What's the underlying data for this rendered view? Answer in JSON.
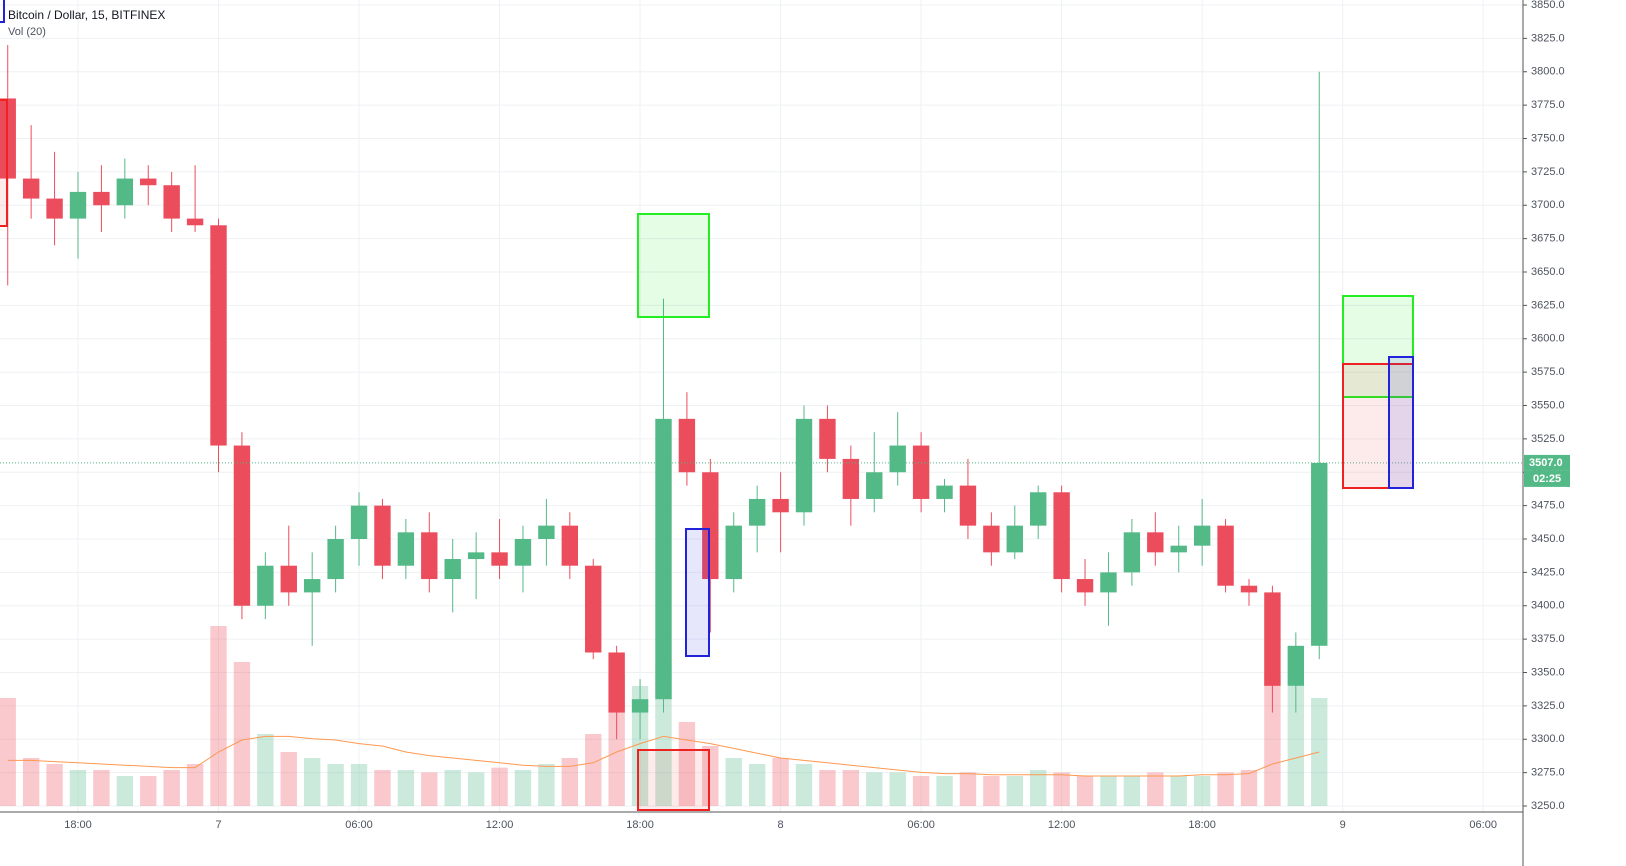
{
  "chart_data": {
    "type": "candlestick",
    "title": "Bitcoin / Dollar, 15, BITFINEX",
    "subtitle": "Vol (20)",
    "x": [
      -3,
      -2,
      -1,
      0,
      1,
      2,
      3,
      4,
      5,
      6,
      7,
      8,
      9,
      10,
      11,
      12,
      13,
      14,
      15,
      16,
      17,
      18,
      19,
      20,
      21,
      22,
      23,
      24,
      25,
      26,
      27,
      28,
      29,
      30,
      31,
      32,
      33,
      34,
      35,
      36,
      37,
      38,
      39,
      40,
      41,
      42,
      43,
      44,
      45,
      46,
      47,
      48,
      49,
      50,
      51,
      52,
      53
    ],
    "open": [
      3780,
      3720,
      3705,
      3690,
      3710,
      3700,
      3720,
      3715,
      3690,
      3685,
      3520,
      3400,
      3430,
      3410,
      3420,
      3450,
      3475,
      3430,
      3455,
      3420,
      3435,
      3440,
      3430,
      3450,
      3460,
      3430,
      3365,
      3320,
      3330,
      3540,
      3500,
      3420,
      3460,
      3480,
      3470,
      3540,
      3510,
      3480,
      3500,
      3520,
      3480,
      3490,
      3460,
      3440,
      3460,
      3485,
      3420,
      3410,
      3425,
      3455,
      3440,
      3445,
      3460,
      3415,
      3410,
      3340,
      3370
    ],
    "high": [
      3820,
      3760,
      3740,
      3725,
      3730,
      3735,
      3730,
      3725,
      3730,
      3690,
      3530,
      3440,
      3460,
      3440,
      3460,
      3485,
      3480,
      3465,
      3470,
      3450,
      3455,
      3465,
      3460,
      3480,
      3470,
      3435,
      3370,
      3345,
      3630,
      3560,
      3510,
      3470,
      3490,
      3500,
      3550,
      3550,
      3520,
      3530,
      3545,
      3530,
      3495,
      3510,
      3470,
      3475,
      3490,
      3490,
      3435,
      3440,
      3465,
      3470,
      3460,
      3480,
      3465,
      3420,
      3415,
      3380,
      3800
    ],
    "low": [
      3640,
      3690,
      3670,
      3660,
      3680,
      3690,
      3700,
      3680,
      3680,
      3500,
      3390,
      3390,
      3400,
      3370,
      3410,
      3430,
      3420,
      3420,
      3410,
      3395,
      3405,
      3420,
      3410,
      3430,
      3420,
      3360,
      3300,
      3300,
      3320,
      3490,
      3380,
      3410,
      3440,
      3440,
      3460,
      3500,
      3460,
      3470,
      3490,
      3470,
      3470,
      3450,
      3430,
      3435,
      3450,
      3410,
      3400,
      3385,
      3415,
      3430,
      3425,
      3430,
      3410,
      3400,
      3320,
      3320,
      3360
    ],
    "close": [
      3720,
      3705,
      3690,
      3710,
      3700,
      3720,
      3715,
      3690,
      3685,
      3520,
      3400,
      3430,
      3410,
      3420,
      3450,
      3475,
      3430,
      3455,
      3420,
      3435,
      3440,
      3430,
      3450,
      3460,
      3430,
      3365,
      3320,
      3330,
      3540,
      3500,
      3420,
      3460,
      3480,
      3470,
      3540,
      3510,
      3480,
      3500,
      3520,
      3480,
      3490,
      3460,
      3440,
      3460,
      3485,
      3420,
      3410,
      3425,
      3455,
      3440,
      3445,
      3460,
      3415,
      3410,
      3340,
      3370,
      3507
    ],
    "volume": [
      90,
      40,
      35,
      30,
      30,
      25,
      25,
      30,
      35,
      150,
      120,
      60,
      45,
      40,
      35,
      35,
      30,
      30,
      28,
      30,
      28,
      32,
      30,
      35,
      40,
      60,
      110,
      100,
      120,
      70,
      50,
      40,
      35,
      40,
      35,
      30,
      30,
      28,
      28,
      25,
      25,
      28,
      25,
      25,
      30,
      28,
      25,
      25,
      25,
      28,
      25,
      25,
      28,
      30,
      110,
      100,
      90
    ],
    "volume_ma": [
      38,
      38,
      37,
      36,
      35,
      34,
      33,
      32,
      32,
      45,
      55,
      58,
      58,
      56,
      55,
      52,
      50,
      45,
      42,
      40,
      38,
      36,
      34,
      33,
      33,
      36,
      45,
      52,
      58,
      55,
      52,
      48,
      44,
      40,
      38,
      36,
      34,
      32,
      30,
      28,
      27,
      27,
      26,
      26,
      26,
      26,
      25,
      25,
      25,
      25,
      25,
      26,
      26,
      27,
      35,
      40,
      45
    ],
    "up_color": "#53b987",
    "down_color": "#eb4d5c",
    "ma_color": "#ff9850",
    "xlim": [
      -3.33,
      61.7
    ],
    "xticks": [
      {
        "value": 0,
        "label": "18:00"
      },
      {
        "value": 6,
        "label": "7"
      },
      {
        "value": 12,
        "label": "06:00"
      },
      {
        "value": 18,
        "label": "12:00"
      },
      {
        "value": 24,
        "label": "18:00"
      },
      {
        "value": 30,
        "label": "8"
      },
      {
        "value": 36,
        "label": "06:00"
      },
      {
        "value": 42,
        "label": "12:00"
      },
      {
        "value": 48,
        "label": "18:00"
      },
      {
        "value": 54,
        "label": "9"
      },
      {
        "value": 60,
        "label": "06:00"
      }
    ],
    "ylim": [
      3250,
      3850
    ],
    "yticks": [
      {
        "value": 3250,
        "label": "3250.0"
      },
      {
        "value": 3275,
        "label": "3275.0"
      },
      {
        "value": 3300,
        "label": "3300.0"
      },
      {
        "value": 3325,
        "label": "3325.0"
      },
      {
        "value": 3350,
        "label": "3350.0"
      },
      {
        "value": 3375,
        "label": "3375.0"
      },
      {
        "value": 3400,
        "label": "3400.0"
      },
      {
        "value": 3425,
        "label": "3425.0"
      },
      {
        "value": 3450,
        "label": "3450.0"
      },
      {
        "value": 3475,
        "label": "3475.0"
      },
      {
        "value": 3500,
        "label": "3500.0"
      },
      {
        "value": 3525,
        "label": "3525.0"
      },
      {
        "value": 3550,
        "label": "3550.0"
      },
      {
        "value": 3575,
        "label": "3575.0"
      },
      {
        "value": 3600,
        "label": "3600.0"
      },
      {
        "value": 3625,
        "label": "3625.0"
      },
      {
        "value": 3650,
        "label": "3650.0"
      },
      {
        "value": 3675,
        "label": "3675.0"
      },
      {
        "value": 3700,
        "label": "3700.0"
      },
      {
        "value": 3725,
        "label": "3725.0"
      },
      {
        "value": 3750,
        "label": "3750.0"
      },
      {
        "value": 3775,
        "label": "3775.0"
      },
      {
        "value": 3800,
        "label": "3800.0"
      },
      {
        "value": 3825,
        "label": "3825.0"
      },
      {
        "value": 3850,
        "label": "3850.0"
      }
    ],
    "last_price": {
      "value": 3507,
      "label": "3507.0"
    },
    "countdown": "02:25",
    "grid": true
  }
}
